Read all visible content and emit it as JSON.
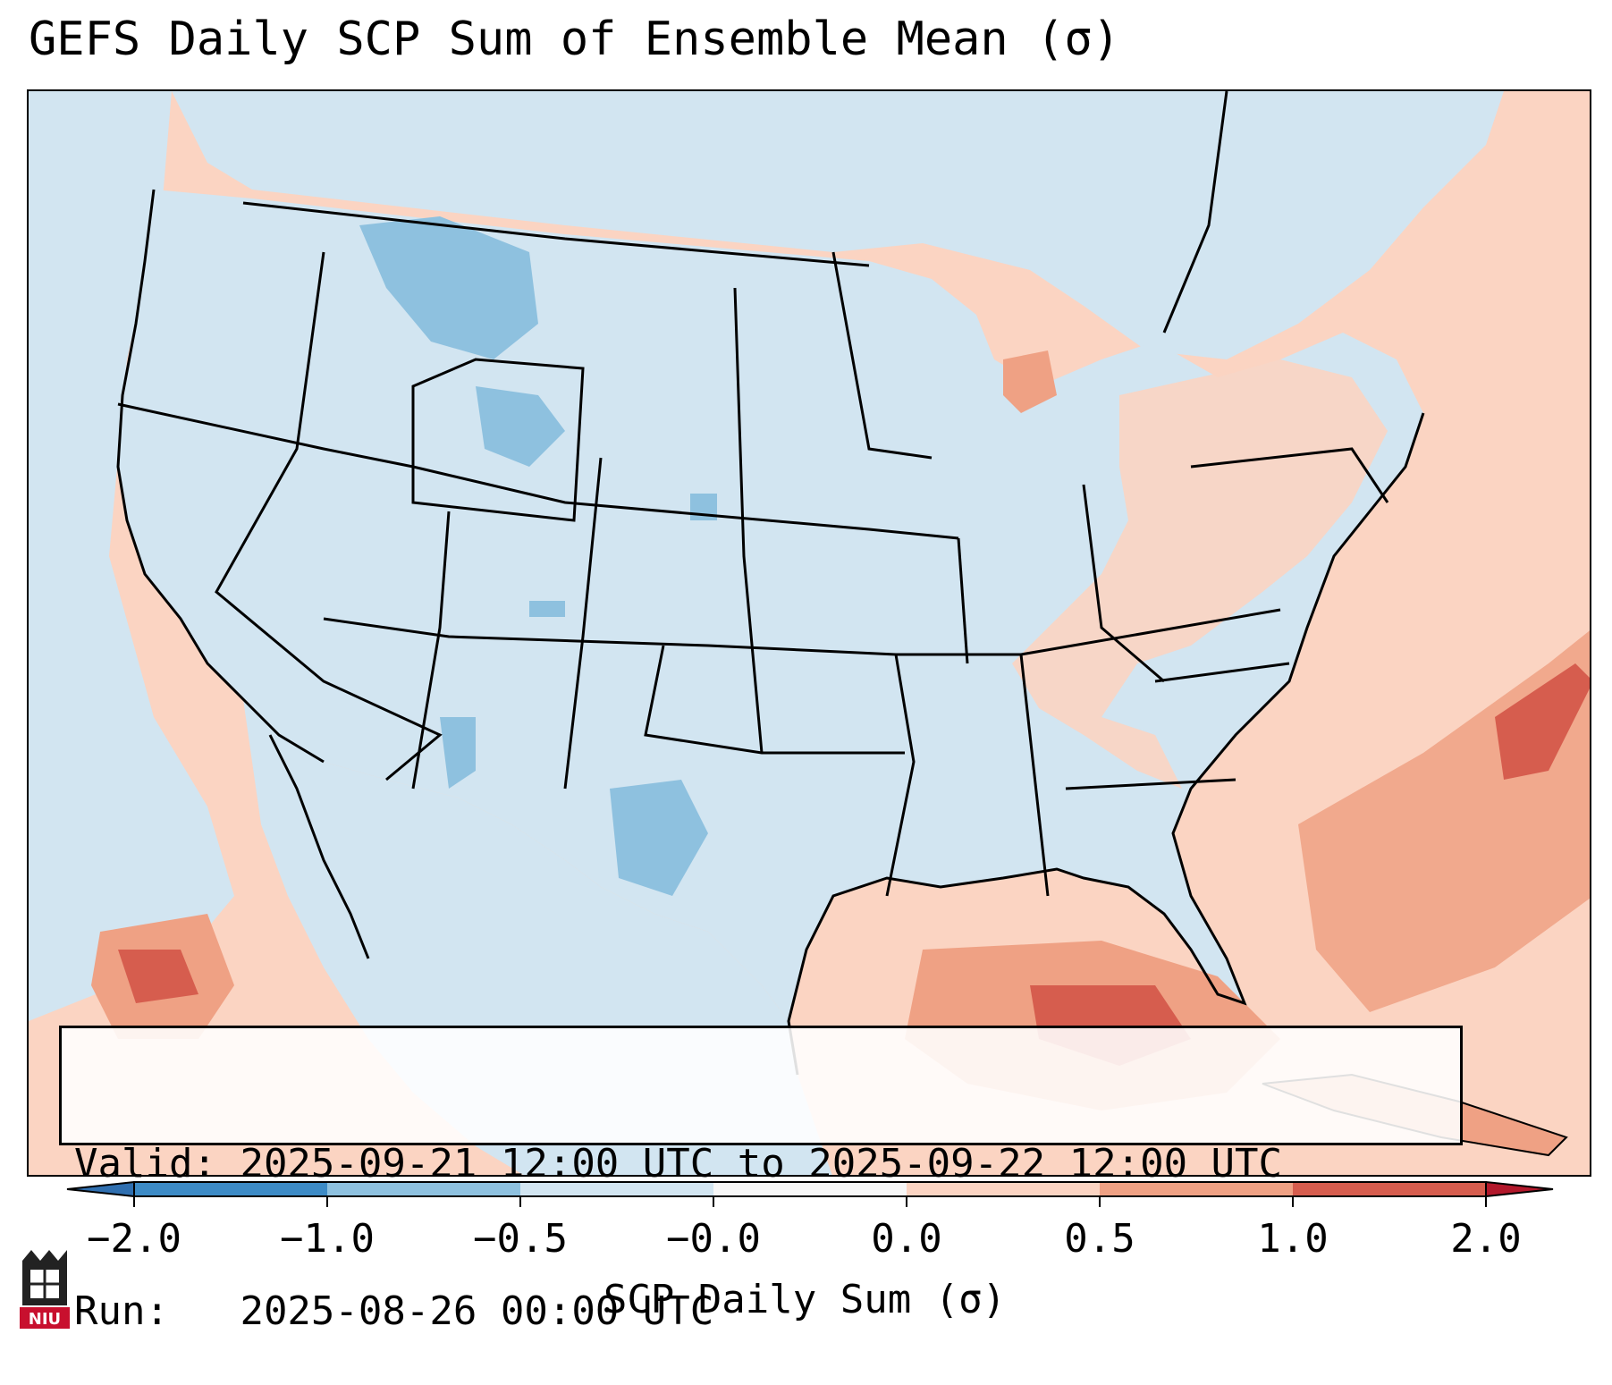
{
  "title": "GEFS Daily SCP Sum of Ensemble Mean (σ)",
  "info": {
    "valid_label": "Valid:",
    "valid_value": "2025-09-21 12:00 UTC to 2025-09-22 12:00 UTC",
    "run_label": "Run:",
    "run_value": "2025-08-26 00:00 UTC"
  },
  "colorbar": {
    "label": "SCP Daily Sum (σ)",
    "ticks": [
      "−2.0",
      "−1.0",
      "−0.5",
      "−0.0",
      "0.0",
      "0.5",
      "1.0",
      "2.0"
    ],
    "colors": [
      "#3d8bc6",
      "#8ec1df",
      "#d2e5f1",
      "#f7f7f7",
      "#fbd4c2",
      "#efa184",
      "#d65d4e"
    ],
    "under_color": "#2f6fb0",
    "over_color": "#b2182b"
  },
  "map": {
    "region": "Contiguous United States",
    "ocean_fill": "#fbd4c2",
    "land_fill": "#d2e5f1",
    "negative_mid": "#8ec1df",
    "positive_mid": "#efa184",
    "positive_high": "#d65d4e"
  },
  "logo": {
    "text": "NIU",
    "icon": "niu-logo-icon",
    "color": "#c8102e"
  }
}
